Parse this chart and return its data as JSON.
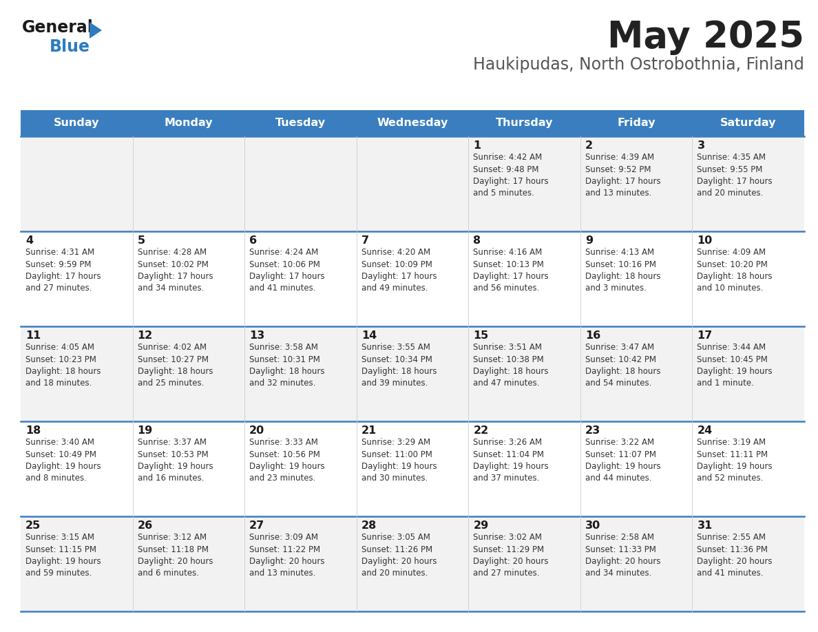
{
  "title": "May 2025",
  "subtitle": "Haukipudas, North Ostrobothnia, Finland",
  "days_of_week": [
    "Sunday",
    "Monday",
    "Tuesday",
    "Wednesday",
    "Thursday",
    "Friday",
    "Saturday"
  ],
  "header_bg": "#3a7ebf",
  "header_text": "#ffffff",
  "row_bg_odd": "#f2f2f2",
  "row_bg_even": "#ffffff",
  "text_color": "#333333",
  "date_color": "#1a1a1a",
  "border_color": "#3a7ebf",
  "title_color": "#222222",
  "subtitle_color": "#555555",
  "logo_black": "#1a1a1a",
  "logo_blue": "#2e7cbf",
  "calendar_data": [
    [
      {
        "day": "",
        "info": ""
      },
      {
        "day": "",
        "info": ""
      },
      {
        "day": "",
        "info": ""
      },
      {
        "day": "",
        "info": ""
      },
      {
        "day": "1",
        "info": "Sunrise: 4:42 AM\nSunset: 9:48 PM\nDaylight: 17 hours\nand 5 minutes."
      },
      {
        "day": "2",
        "info": "Sunrise: 4:39 AM\nSunset: 9:52 PM\nDaylight: 17 hours\nand 13 minutes."
      },
      {
        "day": "3",
        "info": "Sunrise: 4:35 AM\nSunset: 9:55 PM\nDaylight: 17 hours\nand 20 minutes."
      }
    ],
    [
      {
        "day": "4",
        "info": "Sunrise: 4:31 AM\nSunset: 9:59 PM\nDaylight: 17 hours\nand 27 minutes."
      },
      {
        "day": "5",
        "info": "Sunrise: 4:28 AM\nSunset: 10:02 PM\nDaylight: 17 hours\nand 34 minutes."
      },
      {
        "day": "6",
        "info": "Sunrise: 4:24 AM\nSunset: 10:06 PM\nDaylight: 17 hours\nand 41 minutes."
      },
      {
        "day": "7",
        "info": "Sunrise: 4:20 AM\nSunset: 10:09 PM\nDaylight: 17 hours\nand 49 minutes."
      },
      {
        "day": "8",
        "info": "Sunrise: 4:16 AM\nSunset: 10:13 PM\nDaylight: 17 hours\nand 56 minutes."
      },
      {
        "day": "9",
        "info": "Sunrise: 4:13 AM\nSunset: 10:16 PM\nDaylight: 18 hours\nand 3 minutes."
      },
      {
        "day": "10",
        "info": "Sunrise: 4:09 AM\nSunset: 10:20 PM\nDaylight: 18 hours\nand 10 minutes."
      }
    ],
    [
      {
        "day": "11",
        "info": "Sunrise: 4:05 AM\nSunset: 10:23 PM\nDaylight: 18 hours\nand 18 minutes."
      },
      {
        "day": "12",
        "info": "Sunrise: 4:02 AM\nSunset: 10:27 PM\nDaylight: 18 hours\nand 25 minutes."
      },
      {
        "day": "13",
        "info": "Sunrise: 3:58 AM\nSunset: 10:31 PM\nDaylight: 18 hours\nand 32 minutes."
      },
      {
        "day": "14",
        "info": "Sunrise: 3:55 AM\nSunset: 10:34 PM\nDaylight: 18 hours\nand 39 minutes."
      },
      {
        "day": "15",
        "info": "Sunrise: 3:51 AM\nSunset: 10:38 PM\nDaylight: 18 hours\nand 47 minutes."
      },
      {
        "day": "16",
        "info": "Sunrise: 3:47 AM\nSunset: 10:42 PM\nDaylight: 18 hours\nand 54 minutes."
      },
      {
        "day": "17",
        "info": "Sunrise: 3:44 AM\nSunset: 10:45 PM\nDaylight: 19 hours\nand 1 minute."
      }
    ],
    [
      {
        "day": "18",
        "info": "Sunrise: 3:40 AM\nSunset: 10:49 PM\nDaylight: 19 hours\nand 8 minutes."
      },
      {
        "day": "19",
        "info": "Sunrise: 3:37 AM\nSunset: 10:53 PM\nDaylight: 19 hours\nand 16 minutes."
      },
      {
        "day": "20",
        "info": "Sunrise: 3:33 AM\nSunset: 10:56 PM\nDaylight: 19 hours\nand 23 minutes."
      },
      {
        "day": "21",
        "info": "Sunrise: 3:29 AM\nSunset: 11:00 PM\nDaylight: 19 hours\nand 30 minutes."
      },
      {
        "day": "22",
        "info": "Sunrise: 3:26 AM\nSunset: 11:04 PM\nDaylight: 19 hours\nand 37 minutes."
      },
      {
        "day": "23",
        "info": "Sunrise: 3:22 AM\nSunset: 11:07 PM\nDaylight: 19 hours\nand 44 minutes."
      },
      {
        "day": "24",
        "info": "Sunrise: 3:19 AM\nSunset: 11:11 PM\nDaylight: 19 hours\nand 52 minutes."
      }
    ],
    [
      {
        "day": "25",
        "info": "Sunrise: 3:15 AM\nSunset: 11:15 PM\nDaylight: 19 hours\nand 59 minutes."
      },
      {
        "day": "26",
        "info": "Sunrise: 3:12 AM\nSunset: 11:18 PM\nDaylight: 20 hours\nand 6 minutes."
      },
      {
        "day": "27",
        "info": "Sunrise: 3:09 AM\nSunset: 11:22 PM\nDaylight: 20 hours\nand 13 minutes."
      },
      {
        "day": "28",
        "info": "Sunrise: 3:05 AM\nSunset: 11:26 PM\nDaylight: 20 hours\nand 20 minutes."
      },
      {
        "day": "29",
        "info": "Sunrise: 3:02 AM\nSunset: 11:29 PM\nDaylight: 20 hours\nand 27 minutes."
      },
      {
        "day": "30",
        "info": "Sunrise: 2:58 AM\nSunset: 11:33 PM\nDaylight: 20 hours\nand 34 minutes."
      },
      {
        "day": "31",
        "info": "Sunrise: 2:55 AM\nSunset: 11:36 PM\nDaylight: 20 hours\nand 41 minutes."
      }
    ]
  ]
}
